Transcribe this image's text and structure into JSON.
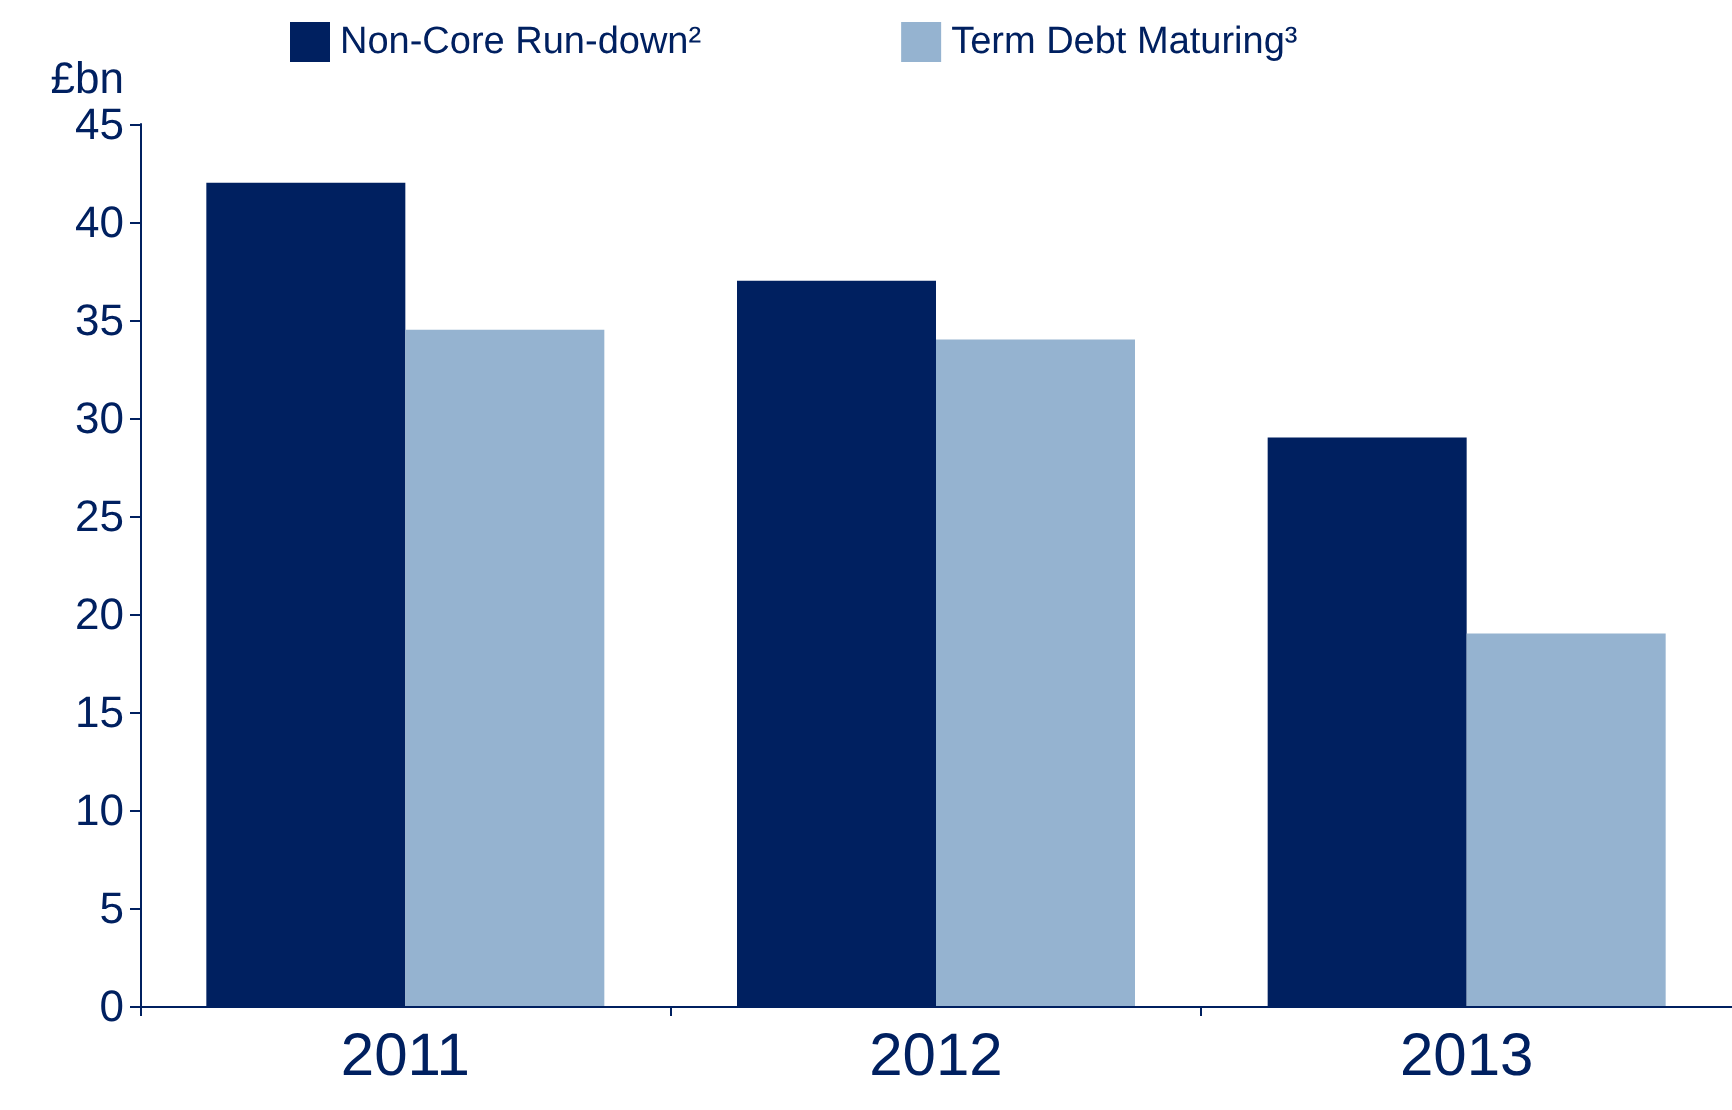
{
  "chart_data": {
    "type": "bar",
    "ylabel": "£bn",
    "categories": [
      "2011",
      "2012",
      "2013"
    ],
    "series": [
      {
        "name": "Non-Core Run-down²",
        "color": "#002060",
        "values": [
          42,
          37,
          29
        ]
      },
      {
        "name": "Term Debt Maturing³",
        "color": "#95b3d0",
        "values": [
          34.5,
          34,
          19
        ]
      }
    ],
    "ylim": [
      0,
      45
    ],
    "yticks": [
      0,
      5,
      10,
      15,
      20,
      25,
      30,
      35,
      40,
      45
    ],
    "grid": false,
    "legend": "top"
  }
}
